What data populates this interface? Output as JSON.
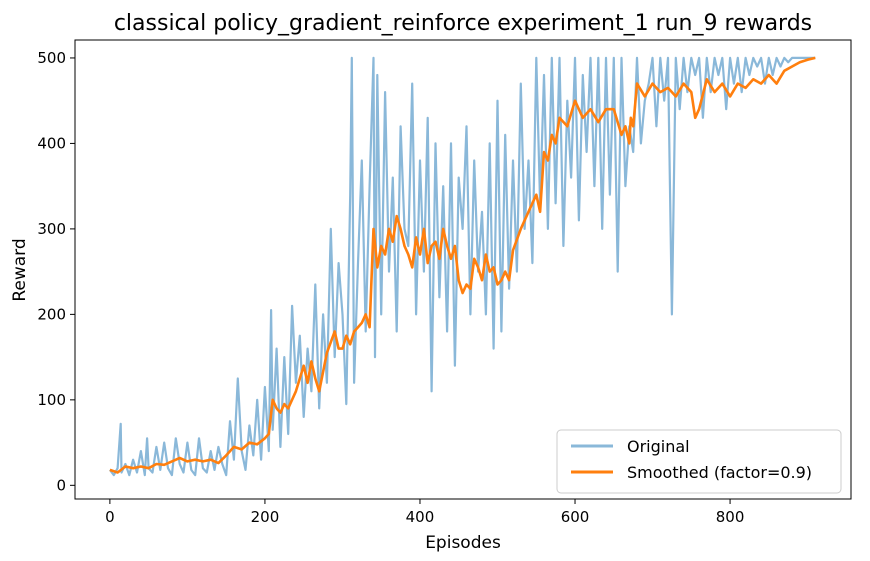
{
  "chart_data": {
    "type": "line",
    "title": "classical policy_gradient_reinforce experiment_1 run_9 rewards",
    "xlabel": "Episodes",
    "ylabel": "Reward",
    "xlim": [
      -45,
      956
    ],
    "ylim": [
      -16,
      521
    ],
    "xticks": [
      0,
      200,
      400,
      600,
      800
    ],
    "yticks": [
      0,
      100,
      200,
      300,
      400,
      500
    ],
    "grid": false,
    "legend_position": "bottom-right",
    "series": [
      {
        "name": "Original",
        "color": "#8ab8d9",
        "x": [
          0,
          5,
          10,
          14,
          15,
          20,
          25,
          30,
          35,
          40,
          45,
          48,
          50,
          55,
          60,
          65,
          70,
          75,
          80,
          85,
          90,
          95,
          100,
          105,
          110,
          115,
          120,
          125,
          130,
          135,
          140,
          145,
          150,
          155,
          160,
          165,
          170,
          175,
          180,
          185,
          190,
          195,
          200,
          205,
          208,
          210,
          215,
          220,
          225,
          230,
          235,
          240,
          245,
          250,
          255,
          260,
          265,
          270,
          275,
          280,
          285,
          290,
          295,
          300,
          305,
          310,
          312,
          315,
          320,
          325,
          330,
          335,
          340,
          342,
          345,
          350,
          355,
          360,
          365,
          370,
          375,
          380,
          385,
          390,
          395,
          400,
          405,
          410,
          415,
          420,
          425,
          430,
          435,
          440,
          445,
          450,
          455,
          460,
          465,
          470,
          475,
          480,
          485,
          490,
          495,
          500,
          505,
          510,
          515,
          520,
          525,
          530,
          535,
          540,
          545,
          550,
          555,
          560,
          565,
          570,
          575,
          580,
          585,
          590,
          595,
          600,
          605,
          610,
          615,
          620,
          625,
          630,
          635,
          640,
          645,
          650,
          655,
          660,
          665,
          670,
          675,
          680,
          685,
          690,
          695,
          700,
          705,
          710,
          715,
          720,
          725,
          730,
          735,
          740,
          745,
          750,
          755,
          760,
          765,
          770,
          775,
          780,
          785,
          790,
          795,
          800,
          805,
          810,
          815,
          820,
          825,
          830,
          835,
          840,
          845,
          850,
          855,
          860,
          865,
          870,
          875,
          880,
          885,
          890,
          895,
          900,
          905,
          910
        ],
        "y": [
          18,
          12,
          20,
          72,
          15,
          25,
          12,
          30,
          15,
          40,
          12,
          55,
          20,
          15,
          45,
          18,
          50,
          20,
          12,
          55,
          25,
          15,
          50,
          18,
          12,
          55,
          20,
          15,
          40,
          18,
          45,
          25,
          12,
          75,
          30,
          125,
          40,
          18,
          70,
          35,
          100,
          30,
          115,
          40,
          205,
          65,
          160,
          45,
          150,
          60,
          210,
          120,
          175,
          80,
          160,
          110,
          235,
          90,
          200,
          120,
          300,
          150,
          260,
          200,
          95,
          340,
          500,
          120,
          260,
          380,
          180,
          350,
          500,
          150,
          480,
          200,
          460,
          250,
          360,
          180,
          420,
          300,
          280,
          470,
          200,
          380,
          250,
          430,
          110,
          400,
          220,
          350,
          180,
          400,
          140,
          360,
          300,
          420,
          200,
          380,
          250,
          320,
          200,
          400,
          160,
          450,
          180,
          410,
          230,
          380,
          250,
          470,
          300,
          380,
          260,
          500,
          330,
          480,
          300,
          500,
          330,
          500,
          280,
          450,
          360,
          500,
          310,
          480,
          390,
          500,
          350,
          500,
          300,
          500,
          340,
          500,
          250,
          500,
          350,
          420,
          390,
          500,
          400,
          450,
          470,
          500,
          420,
          500,
          450,
          500,
          200,
          500,
          440,
          500,
          460,
          500,
          480,
          500,
          430,
          500,
          460,
          500,
          480,
          500,
          440,
          500,
          470,
          500,
          460,
          500,
          480,
          500,
          490,
          500,
          470,
          500,
          480,
          500,
          490,
          500,
          495,
          500,
          500,
          500,
          500,
          500,
          500,
          500
        ]
      },
      {
        "name": "Smoothed (factor=0.9)",
        "color": "#ff7f0e",
        "x": [
          0,
          10,
          20,
          30,
          40,
          50,
          60,
          70,
          80,
          90,
          100,
          110,
          120,
          130,
          140,
          150,
          160,
          170,
          180,
          190,
          200,
          205,
          210,
          215,
          220,
          225,
          230,
          240,
          250,
          255,
          260,
          265,
          270,
          280,
          290,
          295,
          300,
          305,
          310,
          315,
          320,
          325,
          330,
          335,
          340,
          345,
          350,
          355,
          360,
          365,
          370,
          375,
          380,
          385,
          390,
          395,
          400,
          405,
          410,
          415,
          420,
          425,
          430,
          435,
          440,
          445,
          450,
          455,
          460,
          465,
          470,
          475,
          480,
          485,
          490,
          495,
          500,
          505,
          510,
          515,
          520,
          530,
          540,
          550,
          555,
          560,
          565,
          570,
          575,
          580,
          590,
          600,
          610,
          620,
          630,
          640,
          650,
          660,
          665,
          670,
          672,
          675,
          680,
          690,
          700,
          710,
          720,
          730,
          740,
          750,
          755,
          760,
          770,
          780,
          790,
          800,
          810,
          820,
          830,
          840,
          850,
          860,
          870,
          880,
          890,
          900,
          910
        ],
        "y": [
          18,
          15,
          22,
          20,
          22,
          20,
          25,
          24,
          28,
          32,
          28,
          30,
          28,
          30,
          26,
          35,
          45,
          42,
          50,
          48,
          55,
          60,
          100,
          90,
          85,
          95,
          90,
          110,
          140,
          120,
          145,
          125,
          110,
          155,
          180,
          160,
          160,
          175,
          165,
          180,
          185,
          190,
          200,
          185,
          300,
          255,
          280,
          270,
          300,
          285,
          315,
          300,
          280,
          270,
          255,
          290,
          270,
          300,
          260,
          280,
          285,
          265,
          300,
          280,
          265,
          280,
          240,
          225,
          235,
          230,
          265,
          255,
          240,
          270,
          250,
          255,
          235,
          240,
          250,
          240,
          275,
          300,
          320,
          340,
          320,
          390,
          380,
          410,
          400,
          430,
          420,
          450,
          430,
          440,
          425,
          440,
          440,
          410,
          420,
          400,
          430,
          420,
          470,
          455,
          470,
          460,
          465,
          455,
          470,
          460,
          430,
          440,
          475,
          460,
          470,
          455,
          470,
          465,
          475,
          470,
          480,
          470,
          485,
          490,
          495,
          498,
          500
        ]
      }
    ]
  }
}
